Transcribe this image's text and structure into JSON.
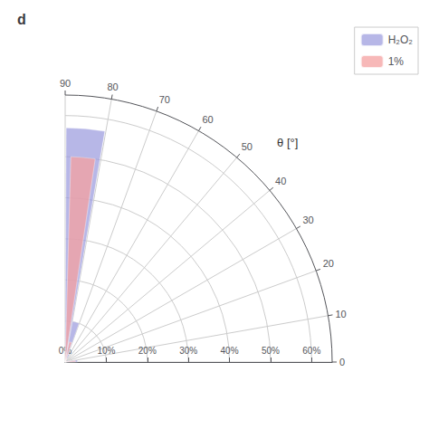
{
  "chart_data": {
    "type": "polar_bar",
    "title": "d",
    "xlabel": "θ [°]",
    "series": [
      {
        "name": "H₂O₂",
        "color": "#9999dd",
        "x": [
          85,
          75,
          65,
          15,
          5
        ],
        "values": [
          0.57,
          0.1,
          0.02,
          0.01,
          0.03
        ]
      },
      {
        "name": "1%",
        "color": "#f4a0a0",
        "x": [
          85,
          75,
          65,
          15,
          5
        ],
        "values": [
          0.5,
          0.05,
          0.01,
          0.005,
          0.025
        ]
      }
    ],
    "xlim": [
      0,
      90
    ],
    "xticks": [
      0,
      10,
      20,
      30,
      40,
      50,
      60,
      70,
      80,
      90
    ],
    "ylim": [
      0,
      0.65
    ],
    "yticks": [
      {
        "value": 0.0,
        "label": "0%"
      },
      {
        "value": 0.1,
        "label": "10%"
      },
      {
        "value": 0.2,
        "label": "20%"
      },
      {
        "value": 0.3,
        "label": "30%"
      },
      {
        "value": 0.4,
        "label": "40%"
      },
      {
        "value": 0.5,
        "label": "50%"
      },
      {
        "value": 0.6,
        "label": "60%"
      }
    ],
    "grid": true,
    "legend": "upper right"
  }
}
